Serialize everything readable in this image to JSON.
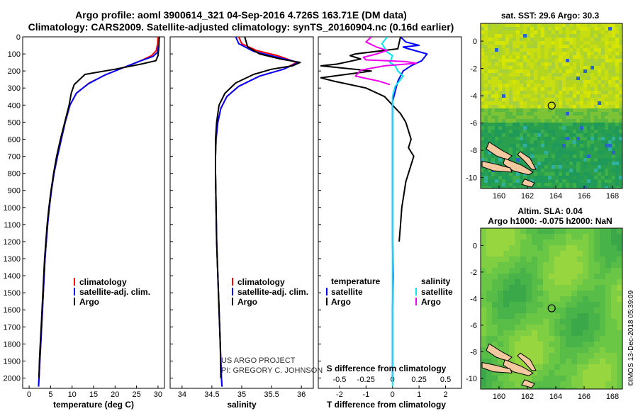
{
  "header": {
    "line1": "Argo profile: aoml 3900614_321 04-Sep-2016 4.726S 163.71E (DM data)",
    "line2": "Climatology: CARS2009. Satellite-adjusted climatology: synTS_20160904.nc (0.16d earlier)"
  },
  "credit": {
    "line1": "US ARGO PROJECT",
    "line2": "PI: GREGORY C. JOHNSON",
    "stamp": "©IMOS 13-Dec-2018 05:39:09"
  },
  "colors": {
    "climatology": "#ff0000",
    "satellite": "#0000ff",
    "argo": "#000000",
    "sat_salinity": "#00e5ee",
    "argo_salinity_diff": "#ee00ee"
  },
  "chart_data": [
    {
      "type": "line",
      "id": "temperature",
      "xlabel": "temperature (deg C)",
      "ylabel": "",
      "xlim": [
        -1.5,
        31.5
      ],
      "ylim": [
        0,
        2060
      ],
      "yinverted": true,
      "xticks": [
        0,
        5,
        10,
        15,
        20,
        25,
        30
      ],
      "yticks": [
        0,
        100,
        200,
        300,
        400,
        500,
        600,
        700,
        800,
        900,
        1000,
        1100,
        1200,
        1300,
        1400,
        1500,
        1600,
        1700,
        1800,
        1900,
        2000
      ],
      "legend": {
        "placement": "middle",
        "entries": [
          "climatology",
          "satellite-adj. clim.",
          "Argo"
        ]
      },
      "series": [
        {
          "name": "climatology",
          "color": "#ff0000",
          "points": [
            [
              30,
              0
            ],
            [
              29.9,
              40
            ],
            [
              29.6,
              80
            ],
            [
              28.5,
              110
            ],
            [
              26,
              140
            ],
            [
              22,
              180
            ],
            [
              18,
              220
            ],
            [
              14,
              270
            ],
            [
              11,
              330
            ],
            [
              9.5,
              400
            ],
            [
              8.4,
              500
            ],
            [
              7.5,
              600
            ],
            [
              6.6,
              700
            ],
            [
              5.8,
              800
            ],
            [
              5.2,
              900
            ],
            [
              4.7,
              1000
            ],
            [
              4.3,
              1100
            ],
            [
              4,
              1200
            ],
            [
              3.7,
              1300
            ],
            [
              3.5,
              1400
            ],
            [
              3.3,
              1500
            ],
            [
              3.1,
              1600
            ],
            [
              2.9,
              1700
            ],
            [
              2.7,
              1800
            ],
            [
              2.5,
              1900
            ],
            [
              2.3,
              2000
            ],
            [
              2.2,
              2050
            ]
          ]
        },
        {
          "name": "satellite-adj. clim.",
          "color": "#0000ff",
          "points": [
            [
              30.3,
              0
            ],
            [
              30.2,
              40
            ],
            [
              29.9,
              90
            ],
            [
              28.8,
              115
            ],
            [
              25.5,
              145
            ],
            [
              21.5,
              185
            ],
            [
              17.5,
              225
            ],
            [
              13.8,
              275
            ],
            [
              11,
              330
            ],
            [
              9.5,
              400
            ],
            [
              8.4,
              500
            ],
            [
              7.5,
              600
            ],
            [
              6.6,
              700
            ],
            [
              5.8,
              800
            ],
            [
              5.2,
              900
            ],
            [
              4.7,
              1000
            ],
            [
              4.3,
              1100
            ],
            [
              4,
              1200
            ],
            [
              3.7,
              1300
            ],
            [
              3.5,
              1400
            ],
            [
              3.3,
              1500
            ],
            [
              3.1,
              1600
            ],
            [
              2.9,
              1700
            ],
            [
              2.7,
              1800
            ],
            [
              2.5,
              1900
            ],
            [
              2.3,
              2000
            ],
            [
              2.2,
              2050
            ]
          ]
        },
        {
          "name": "Argo",
          "color": "#000000",
          "points": [
            [
              30.3,
              0
            ],
            [
              30.2,
              60
            ],
            [
              30,
              110
            ],
            [
              29.5,
              140
            ],
            [
              26,
              160
            ],
            [
              20,
              190
            ],
            [
              13,
              220
            ],
            [
              10.5,
              280
            ],
            [
              9.8,
              330
            ],
            [
              9.3,
              400
            ],
            [
              8.3,
              500
            ],
            [
              7.3,
              600
            ],
            [
              6.4,
              700
            ],
            [
              5.7,
              800
            ],
            [
              5.1,
              900
            ],
            [
              4.6,
              1000
            ],
            [
              4.2,
              1100
            ],
            [
              3.9,
              1200
            ],
            [
              3.6,
              1300
            ],
            [
              3.4,
              1400
            ],
            [
              3.2,
              1500
            ],
            [
              3,
              1600
            ],
            [
              2.8,
              1700
            ],
            [
              2.6,
              1800
            ],
            [
              2.4,
              1900
            ],
            [
              2.3,
              2000
            ]
          ]
        }
      ]
    },
    {
      "type": "line",
      "id": "salinity",
      "xlabel": "salinity",
      "ylabel": "",
      "xlim": [
        33.8,
        36.2
      ],
      "ylim": [
        0,
        2060
      ],
      "yinverted": true,
      "xticks": [
        34,
        34.5,
        35,
        35.5,
        36
      ],
      "legend": {
        "placement": "middle",
        "entries": [
          "climatology",
          "satellite-adj. clim.",
          "Argo"
        ]
      },
      "series": [
        {
          "name": "climatology",
          "color": "#ff0000",
          "points": [
            [
              34.95,
              0
            ],
            [
              35,
              40
            ],
            [
              35.25,
              80
            ],
            [
              35.6,
              110
            ],
            [
              35.92,
              150
            ],
            [
              35.7,
              190
            ],
            [
              35.3,
              230
            ],
            [
              34.95,
              290
            ],
            [
              34.75,
              350
            ],
            [
              34.65,
              420
            ],
            [
              34.6,
              500
            ],
            [
              34.57,
              600
            ],
            [
              34.56,
              700
            ],
            [
              34.56,
              800
            ],
            [
              34.57,
              1000
            ],
            [
              34.58,
              1200
            ],
            [
              34.6,
              1400
            ],
            [
              34.62,
              1600
            ],
            [
              34.64,
              1800
            ],
            [
              34.66,
              2000
            ],
            [
              34.67,
              2050
            ]
          ]
        },
        {
          "name": "satellite-adj. clim.",
          "color": "#0000ff",
          "points": [
            [
              34.9,
              0
            ],
            [
              34.95,
              40
            ],
            [
              35.2,
              85
            ],
            [
              35.55,
              115
            ],
            [
              35.95,
              150
            ],
            [
              35.7,
              190
            ],
            [
              35.3,
              230
            ],
            [
              34.95,
              290
            ],
            [
              34.75,
              350
            ],
            [
              34.65,
              420
            ],
            [
              34.6,
              500
            ],
            [
              34.57,
              600
            ],
            [
              34.56,
              700
            ],
            [
              34.56,
              800
            ],
            [
              34.57,
              1000
            ],
            [
              34.58,
              1200
            ],
            [
              34.6,
              1400
            ],
            [
              34.62,
              1600
            ],
            [
              34.64,
              1800
            ],
            [
              34.66,
              2000
            ],
            [
              34.67,
              2050
            ]
          ]
        },
        {
          "name": "Argo",
          "color": "#000000",
          "points": [
            [
              35.05,
              0
            ],
            [
              35.1,
              60
            ],
            [
              35.3,
              100
            ],
            [
              35.65,
              130
            ],
            [
              35.98,
              150
            ],
            [
              35.85,
              170
            ],
            [
              35.5,
              190
            ],
            [
              35.2,
              220
            ],
            [
              34.9,
              270
            ],
            [
              34.72,
              330
            ],
            [
              34.62,
              400
            ],
            [
              34.58,
              500
            ],
            [
              34.56,
              600
            ],
            [
              34.56,
              700
            ],
            [
              34.56,
              800
            ],
            [
              34.57,
              1000
            ],
            [
              34.58,
              1200
            ],
            [
              34.6,
              1400
            ],
            [
              34.62,
              1600
            ],
            [
              34.64,
              1800
            ],
            [
              34.65,
              2000
            ]
          ]
        }
      ]
    },
    {
      "type": "line",
      "id": "differences",
      "xlabel": "T difference from climatology",
      "top_xlabel": "S difference from climatology",
      "xlim": [
        -2.8,
        2.6
      ],
      "ylim": [
        0,
        2060
      ],
      "yinverted": true,
      "xticks": [
        -2,
        -1,
        0,
        1,
        2
      ],
      "top_xticks": [
        "-0.5",
        "-0.25",
        "0",
        "0.25",
        "0.5"
      ],
      "top_xtick_positions": [
        -2,
        -1,
        0,
        1,
        2
      ],
      "legend": {
        "placement": "middle",
        "temperature_title": "temperature",
        "salinity_title": "salinity",
        "temperature_entries": [
          "satellite",
          "Argo"
        ],
        "salinity_entries": [
          "satellite",
          "Argo"
        ]
      },
      "series": [
        {
          "name": "temperature satellite",
          "color": "#0000ff",
          "points": [
            [
              0.3,
              0
            ],
            [
              0.5,
              30
            ],
            [
              1,
              50
            ],
            [
              0.4,
              60
            ],
            [
              0.6,
              70
            ],
            [
              1.3,
              100
            ],
            [
              1.1,
              140
            ],
            [
              0.7,
              170
            ],
            [
              0.4,
              200
            ],
            [
              0.2,
              260
            ],
            [
              0.1,
              320
            ],
            [
              0,
              380
            ],
            [
              0,
              450
            ],
            [
              0,
              600
            ],
            [
              0,
              800
            ],
            [
              0,
              1000
            ],
            [
              0,
              1200
            ],
            [
              0.02,
              1400
            ],
            [
              0,
              1600
            ],
            [
              0,
              1800
            ],
            [
              0,
              2000
            ]
          ]
        },
        {
          "name": "temperature Argo",
          "color": "#000000",
          "points": [
            [
              0.3,
              0
            ],
            [
              0.2,
              70
            ],
            [
              -1.4,
              100
            ],
            [
              -1.6,
              110
            ],
            [
              -1.2,
              130
            ],
            [
              -2.1,
              160
            ],
            [
              -2.7,
              170
            ],
            [
              -0.8,
              200
            ],
            [
              -2.7,
              240
            ],
            [
              -2.2,
              260
            ],
            [
              -1,
              300
            ],
            [
              -0.3,
              350
            ],
            [
              0,
              400
            ],
            [
              0.3,
              450
            ],
            [
              0.5,
              500
            ],
            [
              0.6,
              550
            ],
            [
              0.7,
              600
            ],
            [
              0.6,
              650
            ],
            [
              0.8,
              700
            ],
            [
              0.7,
              750
            ],
            [
              0.6,
              800
            ],
            [
              0.5,
              850
            ],
            [
              0.45,
              900
            ],
            [
              0.35,
              1000
            ],
            [
              0.3,
              1100
            ],
            [
              0.25,
              1200
            ]
          ]
        },
        {
          "name": "salinity satellite",
          "color": "#00e5ee",
          "points": [
            [
              -0.2,
              0
            ],
            [
              -0.4,
              40
            ],
            [
              -0.2,
              90
            ],
            [
              0,
              110
            ],
            [
              -0.1,
              150
            ],
            [
              0.1,
              170
            ],
            [
              0.2,
              200
            ],
            [
              0.4,
              230
            ],
            [
              0.3,
              250
            ],
            [
              0.1,
              290
            ],
            [
              0,
              350
            ],
            [
              0,
              450
            ],
            [
              0,
              600
            ],
            [
              0,
              800
            ],
            [
              0,
              1000
            ],
            [
              0,
              1200
            ],
            [
              0,
              1400
            ],
            [
              0,
              1600
            ],
            [
              0,
              1800
            ],
            [
              0,
              2050
            ]
          ]
        },
        {
          "name": "salinity Argo",
          "color": "#ee00ee",
          "points": [
            [
              -0.8,
              0
            ],
            [
              -1,
              30
            ],
            [
              -0.6,
              60
            ],
            [
              -0.2,
              80
            ],
            [
              -0.6,
              100
            ],
            [
              -1.1,
              120
            ],
            [
              -1,
              135
            ],
            [
              0.5,
              145
            ],
            [
              0.9,
              155
            ],
            [
              -0.3,
              170
            ],
            [
              -1.2,
              195
            ],
            [
              -1.4,
              230
            ],
            [
              -0.5,
              260
            ],
            [
              -0.1,
              280
            ]
          ]
        }
      ]
    },
    {
      "type": "heatmap",
      "id": "sst_map",
      "title": "sat. SST: 29.6 Argo: 30.3",
      "xlim": [
        158.7,
        168.7
      ],
      "ylim": [
        -10.8,
        1.3
      ],
      "xticks": [
        160,
        162,
        164,
        166,
        168
      ],
      "yticks": [
        0,
        -2,
        -4,
        -6,
        -8,
        -10
      ],
      "argo_location": [
        163.71,
        -4.726
      ]
    },
    {
      "type": "heatmap",
      "id": "sla_map",
      "title": "Altim. SLA: 0.04",
      "title2": "Argo h1000: -0.075 h2000: NaN",
      "xlim": [
        158.7,
        168.7
      ],
      "ylim": [
        -10.8,
        1.3
      ],
      "xticks": [
        160,
        162,
        164,
        166,
        168
      ],
      "yticks": [
        0,
        -2,
        -4,
        -6,
        -8,
        -10
      ],
      "argo_location": [
        163.71,
        -4.726
      ]
    }
  ]
}
